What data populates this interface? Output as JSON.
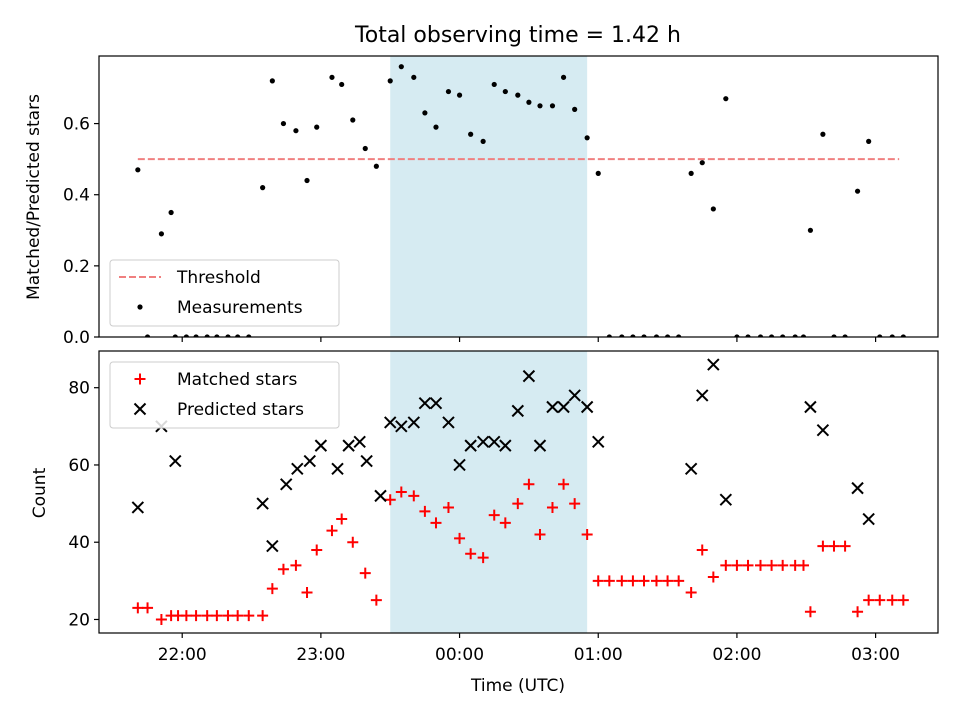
{
  "title": "Total observing time = 1.42 h",
  "chart_data": [
    {
      "type": "scatter",
      "ylabel": "Matched/Predicted stars",
      "xlabel": "",
      "x_unit": "hours since 21:00 UTC",
      "xlim": [
        0.4,
        6.45
      ],
      "ylim": [
        0.0,
        0.79
      ],
      "yticks": [
        0.0,
        0.2,
        0.4,
        0.6
      ],
      "ytick_labels": [
        "0.0",
        "0.2",
        "0.4",
        "0.6"
      ],
      "xticks": [
        1,
        2,
        3,
        4,
        5,
        6
      ],
      "highlight_span": [
        2.5,
        3.92
      ],
      "highlight_color": "#add8e6",
      "threshold": {
        "name": "Threshold",
        "value": 0.5,
        "x_range": [
          0.68,
          6.17
        ],
        "color": "#f08080"
      },
      "legend": {
        "placement": "lower-left",
        "entries": [
          "Threshold",
          "Measurements"
        ]
      },
      "series": [
        {
          "name": "Measurements",
          "color": "#000000",
          "marker": "dot",
          "points": [
            [
              0.68,
              0.47
            ],
            [
              0.75,
              0.0
            ],
            [
              0.85,
              0.29
            ],
            [
              0.92,
              0.35
            ],
            [
              0.95,
              0.0
            ],
            [
              1.03,
              0.0
            ],
            [
              1.1,
              0.0
            ],
            [
              1.18,
              0.0
            ],
            [
              1.25,
              0.0
            ],
            [
              1.33,
              0.0
            ],
            [
              1.4,
              0.0
            ],
            [
              1.48,
              0.0
            ],
            [
              1.58,
              0.42
            ],
            [
              1.65,
              0.72
            ],
            [
              1.73,
              0.6
            ],
            [
              1.82,
              0.58
            ],
            [
              1.9,
              0.44
            ],
            [
              1.97,
              0.59
            ],
            [
              2.08,
              0.73
            ],
            [
              2.15,
              0.71
            ],
            [
              2.23,
              0.61
            ],
            [
              2.32,
              0.53
            ],
            [
              2.4,
              0.48
            ],
            [
              2.5,
              0.72
            ],
            [
              2.58,
              0.76
            ],
            [
              2.67,
              0.73
            ],
            [
              2.75,
              0.63
            ],
            [
              2.83,
              0.59
            ],
            [
              2.92,
              0.69
            ],
            [
              3.0,
              0.68
            ],
            [
              3.08,
              0.57
            ],
            [
              3.17,
              0.55
            ],
            [
              3.25,
              0.71
            ],
            [
              3.33,
              0.69
            ],
            [
              3.42,
              0.68
            ],
            [
              3.5,
              0.66
            ],
            [
              3.58,
              0.65
            ],
            [
              3.67,
              0.65
            ],
            [
              3.75,
              0.73
            ],
            [
              3.83,
              0.64
            ],
            [
              3.92,
              0.56
            ],
            [
              4.0,
              0.46
            ],
            [
              4.08,
              0.0
            ],
            [
              4.17,
              0.0
            ],
            [
              4.25,
              0.0
            ],
            [
              4.33,
              0.0
            ],
            [
              4.42,
              0.0
            ],
            [
              4.5,
              0.0
            ],
            [
              4.58,
              0.0
            ],
            [
              4.67,
              0.46
            ],
            [
              4.75,
              0.49
            ],
            [
              4.83,
              0.36
            ],
            [
              4.92,
              0.67
            ],
            [
              5.0,
              0.0
            ],
            [
              5.08,
              0.0
            ],
            [
              5.17,
              0.0
            ],
            [
              5.25,
              0.0
            ],
            [
              5.33,
              0.0
            ],
            [
              5.42,
              0.0
            ],
            [
              5.48,
              0.0
            ],
            [
              5.53,
              0.3
            ],
            [
              5.62,
              0.57
            ],
            [
              5.7,
              0.0
            ],
            [
              5.78,
              0.0
            ],
            [
              5.87,
              0.41
            ],
            [
              5.95,
              0.55
            ],
            [
              6.03,
              0.0
            ],
            [
              6.12,
              0.0
            ],
            [
              6.2,
              0.0
            ]
          ]
        }
      ]
    },
    {
      "type": "scatter",
      "ylabel": "Count",
      "xlabel": "Time (UTC)",
      "x_unit": "hours since 21:00 UTC",
      "xlim": [
        0.4,
        6.45
      ],
      "ylim": [
        16.5,
        89.5
      ],
      "yticks": [
        20,
        40,
        60,
        80
      ],
      "ytick_labels": [
        "20",
        "40",
        "60",
        "80"
      ],
      "xticks": [
        1,
        2,
        3,
        4,
        5,
        6
      ],
      "xtick_labels": [
        "22:00",
        "23:00",
        "00:00",
        "01:00",
        "02:00",
        "03:00"
      ],
      "highlight_span": [
        2.5,
        3.92
      ],
      "highlight_color": "#add8e6",
      "legend": {
        "placement": "upper-left",
        "entries": [
          "Matched stars",
          "Predicted stars"
        ]
      },
      "series": [
        {
          "name": "Matched stars",
          "color": "#ff0000",
          "marker": "plus",
          "points": [
            [
              0.68,
              23
            ],
            [
              0.75,
              23
            ],
            [
              0.85,
              20
            ],
            [
              0.92,
              21
            ],
            [
              0.97,
              21
            ],
            [
              1.03,
              21
            ],
            [
              1.1,
              21
            ],
            [
              1.18,
              21
            ],
            [
              1.25,
              21
            ],
            [
              1.33,
              21
            ],
            [
              1.4,
              21
            ],
            [
              1.48,
              21
            ],
            [
              1.58,
              21
            ],
            [
              1.65,
              28
            ],
            [
              1.73,
              33
            ],
            [
              1.82,
              34
            ],
            [
              1.9,
              27
            ],
            [
              1.97,
              38
            ],
            [
              2.08,
              43
            ],
            [
              2.15,
              46
            ],
            [
              2.23,
              40
            ],
            [
              2.32,
              32
            ],
            [
              2.4,
              25
            ],
            [
              2.5,
              51
            ],
            [
              2.58,
              53
            ],
            [
              2.67,
              52
            ],
            [
              2.75,
              48
            ],
            [
              2.83,
              45
            ],
            [
              2.92,
              49
            ],
            [
              3.0,
              41
            ],
            [
              3.08,
              37
            ],
            [
              3.17,
              36
            ],
            [
              3.25,
              47
            ],
            [
              3.33,
              45
            ],
            [
              3.42,
              50
            ],
            [
              3.5,
              55
            ],
            [
              3.58,
              42
            ],
            [
              3.67,
              49
            ],
            [
              3.75,
              55
            ],
            [
              3.83,
              50
            ],
            [
              3.92,
              42
            ],
            [
              4.0,
              30
            ],
            [
              4.08,
              30
            ],
            [
              4.17,
              30
            ],
            [
              4.25,
              30
            ],
            [
              4.33,
              30
            ],
            [
              4.42,
              30
            ],
            [
              4.5,
              30
            ],
            [
              4.58,
              30
            ],
            [
              4.67,
              27
            ],
            [
              4.75,
              38
            ],
            [
              4.83,
              31
            ],
            [
              4.92,
              34
            ],
            [
              5.0,
              34
            ],
            [
              5.08,
              34
            ],
            [
              5.17,
              34
            ],
            [
              5.25,
              34
            ],
            [
              5.33,
              34
            ],
            [
              5.42,
              34
            ],
            [
              5.48,
              34
            ],
            [
              5.53,
              22
            ],
            [
              5.62,
              39
            ],
            [
              5.7,
              39
            ],
            [
              5.78,
              39
            ],
            [
              5.87,
              22
            ],
            [
              5.95,
              25
            ],
            [
              6.03,
              25
            ],
            [
              6.12,
              25
            ],
            [
              6.2,
              25
            ]
          ]
        },
        {
          "name": "Predicted stars",
          "color": "#000000",
          "marker": "x",
          "points": [
            [
              0.68,
              49
            ],
            [
              0.85,
              70
            ],
            [
              0.95,
              61
            ],
            [
              1.58,
              50
            ],
            [
              1.65,
              39
            ],
            [
              1.75,
              55
            ],
            [
              1.83,
              59
            ],
            [
              1.92,
              61
            ],
            [
              2.0,
              65
            ],
            [
              2.12,
              59
            ],
            [
              2.2,
              65
            ],
            [
              2.28,
              66
            ],
            [
              2.33,
              61
            ],
            [
              2.43,
              52
            ],
            [
              2.5,
              71
            ],
            [
              2.58,
              70
            ],
            [
              2.67,
              71
            ],
            [
              2.75,
              76
            ],
            [
              2.83,
              76
            ],
            [
              2.92,
              71
            ],
            [
              3.0,
              60
            ],
            [
              3.08,
              65
            ],
            [
              3.17,
              66
            ],
            [
              3.25,
              66
            ],
            [
              3.33,
              65
            ],
            [
              3.42,
              74
            ],
            [
              3.5,
              83
            ],
            [
              3.58,
              65
            ],
            [
              3.67,
              75
            ],
            [
              3.75,
              75
            ],
            [
              3.83,
              78
            ],
            [
              3.92,
              75
            ],
            [
              4.0,
              66
            ],
            [
              4.67,
              59
            ],
            [
              4.75,
              78
            ],
            [
              4.83,
              86
            ],
            [
              4.92,
              51
            ],
            [
              5.53,
              75
            ],
            [
              5.62,
              69
            ],
            [
              5.87,
              54
            ],
            [
              5.95,
              46
            ]
          ]
        }
      ]
    }
  ]
}
